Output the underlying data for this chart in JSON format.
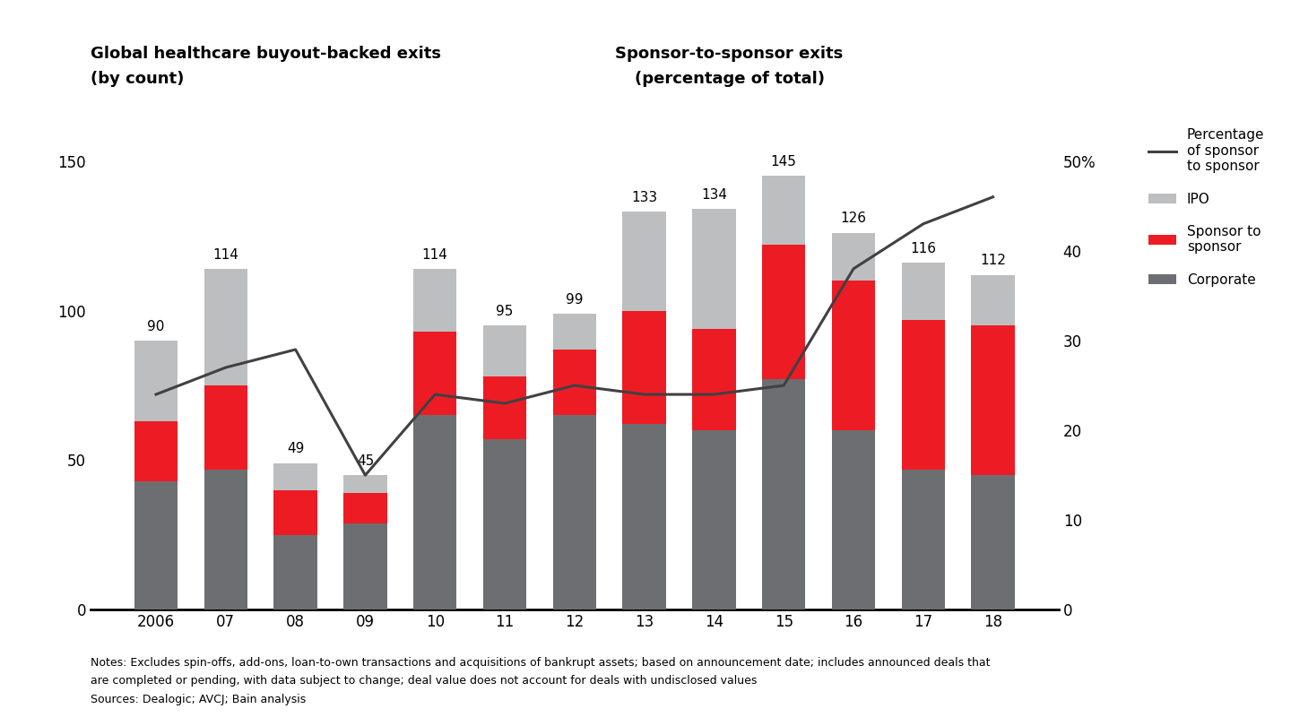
{
  "years": [
    "2006",
    "07",
    "08",
    "09",
    "10",
    "11",
    "12",
    "13",
    "14",
    "15",
    "16",
    "17",
    "18"
  ],
  "totals": [
    90,
    114,
    49,
    45,
    114,
    95,
    99,
    133,
    134,
    145,
    126,
    116,
    112
  ],
  "corporate": [
    43,
    47,
    25,
    29,
    65,
    57,
    65,
    62,
    60,
    77,
    60,
    47,
    45
  ],
  "sponsor_to_sponsor": [
    20,
    28,
    15,
    10,
    28,
    21,
    22,
    38,
    34,
    45,
    50,
    50,
    50
  ],
  "ipo": [
    27,
    39,
    9,
    6,
    21,
    17,
    12,
    33,
    40,
    23,
    16,
    19,
    17
  ],
  "pct_sponsor": [
    24,
    27,
    29,
    15,
    24,
    23,
    25,
    24,
    24,
    25,
    38,
    43,
    46
  ],
  "corporate_color": "#6d6e71",
  "sponsor_color": "#ed1c24",
  "ipo_color": "#bcbec0",
  "line_color": "#414042",
  "left_title_line1": "Global healthcare buyout-backed exits",
  "left_title_line2": "(by count)",
  "right_title_line1": "Sponsor-to-sponsor exits",
  "right_title_line2": "(percentage of total)",
  "left_ylim": [
    0,
    165
  ],
  "left_yticks": [
    0,
    50,
    100,
    150
  ],
  "right_ylim": [
    0,
    55
  ],
  "right_yticks": [
    0,
    10,
    20,
    30,
    40,
    50
  ],
  "right_yticklabels": [
    "0",
    "10",
    "20",
    "30",
    "40",
    "50%"
  ],
  "notes_line1": "Notes: Excludes spin-offs, add-ons, loan-to-own transactions and acquisitions of bankrupt assets; based on announcement date; includes announced deals that",
  "notes_line2": "are completed or pending, with data subject to change; deal value does not account for deals with undisclosed values",
  "notes_line3": "Sources: Dealogic; AVCJ; Bain analysis",
  "legend_line_label": "Percentage\nof sponsor\nto sponsor",
  "legend_ipo_label": "IPO",
  "legend_sponsor_label": "Sponsor to\nsponsor",
  "legend_corporate_label": "Corporate"
}
